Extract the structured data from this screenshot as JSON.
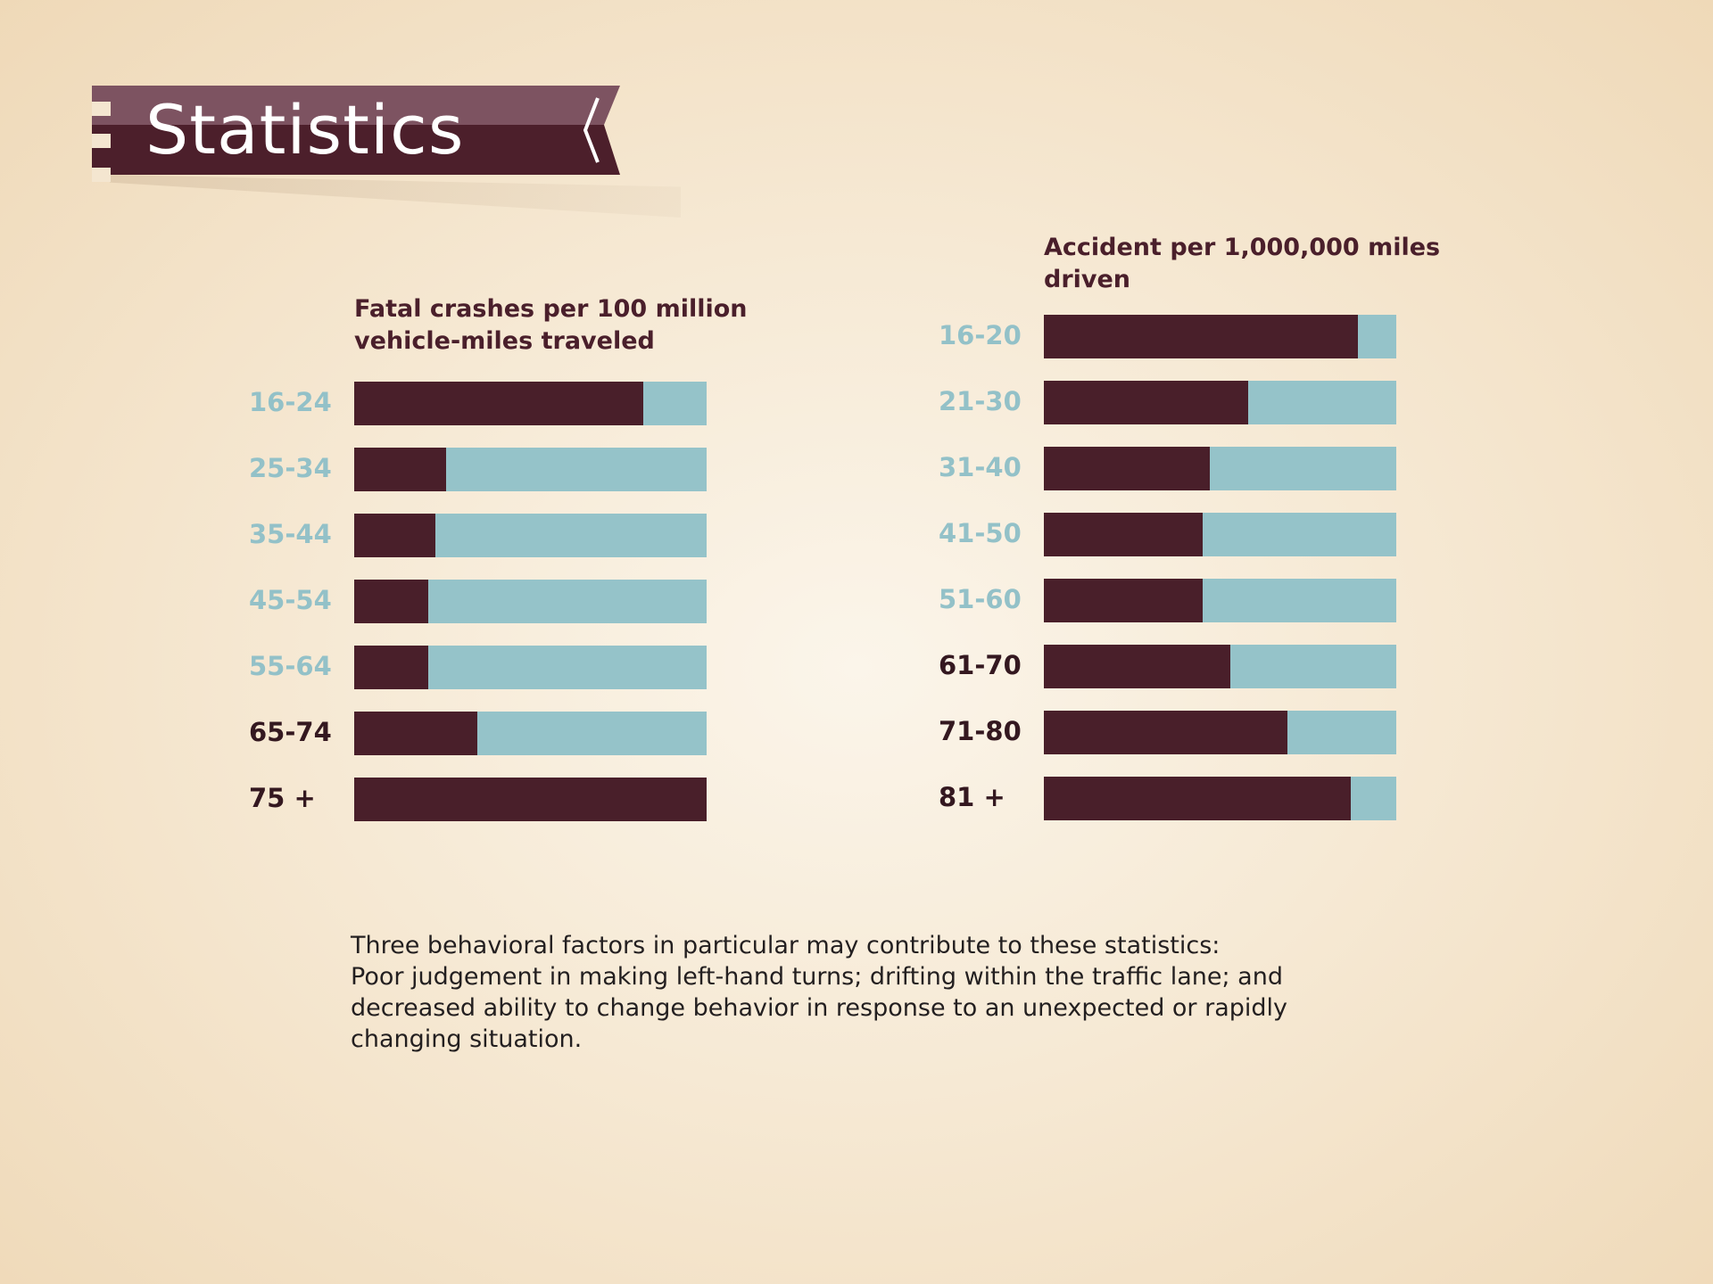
{
  "title": "Statistics",
  "colors": {
    "dark": "#491f2a",
    "light": "#95c3c9",
    "label_light": "#93c1c8",
    "label_dark": "#341820",
    "banner_dark": "#4c1f2b",
    "banner_light": "#7d5361"
  },
  "chart_data": [
    {
      "type": "bar",
      "orientation": "horizontal",
      "stacked_to_full": true,
      "title": "Fatal crashes per 100 million vehicle-miles traveled",
      "categories": [
        "16-24",
        "25-34",
        "35-44",
        "45-54",
        "55-64",
        "65-74",
        "75 +"
      ],
      "values_percent": [
        82,
        26,
        23,
        21,
        21,
        35,
        100
      ],
      "highlighted": [
        "65-74",
        "75 +"
      ]
    },
    {
      "type": "bar",
      "orientation": "horizontal",
      "stacked_to_full": true,
      "title": "Accident per 1,000,000 miles driven",
      "categories": [
        "16-20",
        "21-30",
        "31-40",
        "41-50",
        "51-60",
        "61-70",
        "71-80",
        "81 +"
      ],
      "values_percent": [
        89,
        58,
        47,
        45,
        45,
        53,
        69,
        87
      ],
      "highlighted": [
        "61-70",
        "71-80",
        "81 +"
      ]
    }
  ],
  "footnote": {
    "lines": [
      "Three behavioral factors in particular may contribute to these statistics:",
      "Poor judgement in making left-hand turns; drifting within the traffic lane; and",
      "decreased ability to change behavior in response to an unexpected or rapidly",
      "changing situation."
    ]
  }
}
